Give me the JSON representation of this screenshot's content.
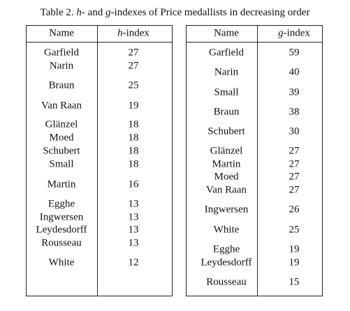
{
  "caption": [
    "Table 2. ",
    "h",
    "- and ",
    "g",
    "-indexes of Price medallists in decreasing order"
  ],
  "tables": [
    {
      "name_header": "Name",
      "index_symbol": "h",
      "index_suffix": "-index",
      "rows": [
        [
          "Garfield",
          27
        ],
        [
          "Narin",
          27
        ],
        [
          "Braun",
          25
        ],
        [
          "Van Raan",
          19
        ],
        [
          "Glänzel",
          18
        ],
        [
          "Moed",
          18
        ],
        [
          "Schubert",
          18
        ],
        [
          "Small",
          18
        ],
        [
          "Martin",
          16
        ],
        [
          "Egghe",
          13
        ],
        [
          "Ingwersen",
          13
        ],
        [
          "Leydesdorff",
          13
        ],
        [
          "Rousseau",
          13
        ],
        [
          "White",
          12
        ]
      ]
    },
    {
      "name_header": "Name",
      "index_symbol": "g",
      "index_suffix": "-index",
      "rows": [
        [
          "Garfield",
          59
        ],
        [
          "Narin",
          40
        ],
        [
          "Small",
          39
        ],
        [
          "Braun",
          38
        ],
        [
          "Schubert",
          30
        ],
        [
          "Glänzel",
          27
        ],
        [
          "Martin",
          27
        ],
        [
          "Moed",
          27
        ],
        [
          "Van Raan",
          27
        ],
        [
          "Ingwersen",
          26
        ],
        [
          "White",
          25
        ],
        [
          "Egghe",
          19
        ],
        [
          "Leydesdorff",
          19
        ],
        [
          "Rousseau",
          15
        ]
      ]
    }
  ]
}
